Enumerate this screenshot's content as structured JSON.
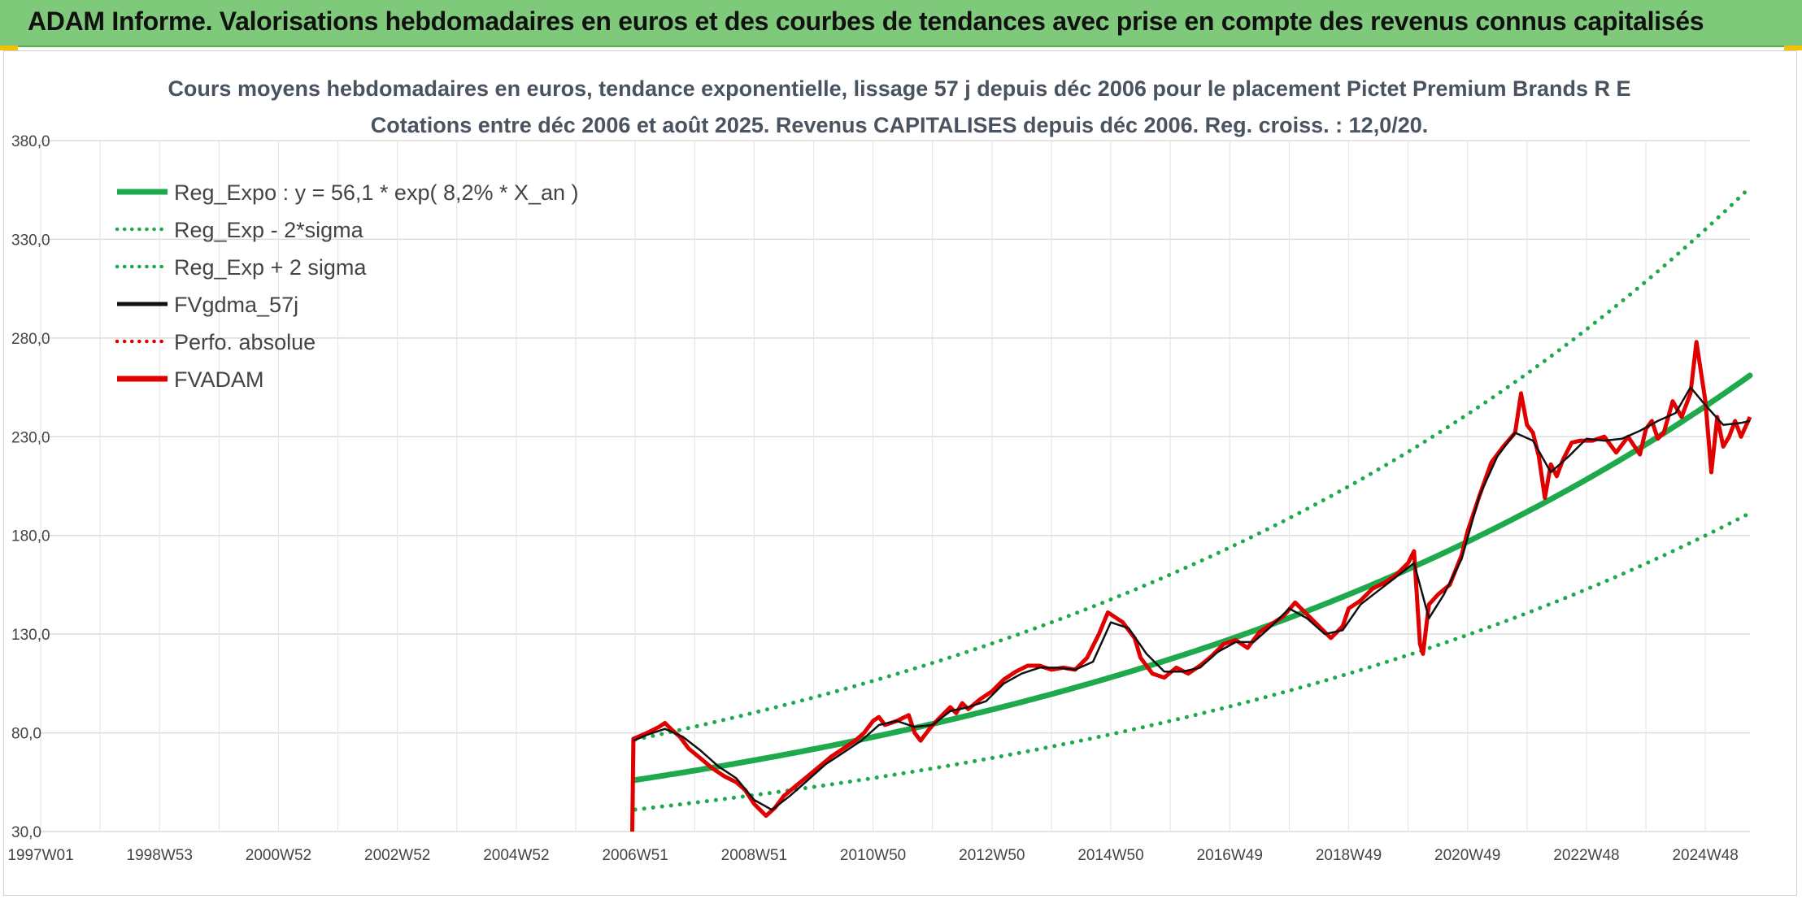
{
  "banner": {
    "title": "ADAM Informe. Valorisations hebdomadaires en euros et des courbes de tendances avec prise en compte des revenus connus capitalisés"
  },
  "chart_data": {
    "type": "line",
    "title_line1": "Cours moyens hebdomadaires en euros, tendance exponentielle, lissage 57 j depuis déc 2006 pour le placement Pictet Premium Brands R E",
    "title_line2": "Cotations entre déc 2006 et août 2025. Revenus CAPITALISES depuis déc 2006. Reg. croiss. : 12,0/20.",
    "ylim": [
      30,
      380
    ],
    "y_ticks": [
      "380,0",
      "330,0",
      "280,0",
      "230,0",
      "180,0",
      "130,0",
      "80,0",
      "30,0"
    ],
    "y_tick_values": [
      380,
      330,
      280,
      230,
      180,
      130,
      80,
      30
    ],
    "x_range": [
      1997.0,
      2025.75
    ],
    "x_ticks": [
      {
        "label": "1997W01",
        "t": 1997.0
      },
      {
        "label": "1998W53",
        "t": 1999.0
      },
      {
        "label": "2000W52",
        "t": 2001.0
      },
      {
        "label": "2002W52",
        "t": 2003.0
      },
      {
        "label": "2004W52",
        "t": 2005.0
      },
      {
        "label": "2006W51",
        "t": 2007.0
      },
      {
        "label": "2008W51",
        "t": 2009.0
      },
      {
        "label": "2010W50",
        "t": 2011.0
      },
      {
        "label": "2012W50",
        "t": 2013.0
      },
      {
        "label": "2014W50",
        "t": 2015.0
      },
      {
        "label": "2016W49",
        "t": 2017.0
      },
      {
        "label": "2018W49",
        "t": 2019.0
      },
      {
        "label": "2020W49",
        "t": 2021.0
      },
      {
        "label": "2022W48",
        "t": 2023.0
      },
      {
        "label": "2024W48",
        "t": 2025.0
      }
    ],
    "legend": [
      {
        "label": "Reg_Expo : y = 56,1 * exp( 8,2% *  X_an )",
        "color": "#1eaa4c",
        "style": "solid-thick"
      },
      {
        "label": "Reg_Exp - 2*sigma",
        "color": "#1eaa4c",
        "style": "dotted"
      },
      {
        "label": "Reg_Exp + 2 sigma",
        "color": "#1eaa4c",
        "style": "dotted"
      },
      {
        "label": "FVgdma_57j",
        "color": "#111111",
        "style": "solid"
      },
      {
        "label": "Perfo. absolue",
        "color": "#e00000",
        "style": "dotted"
      },
      {
        "label": "FVADAM",
        "color": "#e00000",
        "style": "solid-thick"
      }
    ],
    "regression": {
      "a": 56.1,
      "rate": 0.082,
      "t0": 2007.0,
      "upper_factor": 1.365,
      "lower_factor": 0.733,
      "t_end": 2025.75
    },
    "fvadam": {
      "x": [
        2006.95,
        2006.97,
        2007.05,
        2007.2,
        2007.4,
        2007.5,
        2007.6,
        2007.75,
        2007.9,
        2008.1,
        2008.3,
        2008.5,
        2008.7,
        2008.85,
        2009.0,
        2009.1,
        2009.2,
        2009.35,
        2009.5,
        2009.7,
        2009.9,
        2010.1,
        2010.3,
        2010.5,
        2010.7,
        2010.85,
        2011.0,
        2011.1,
        2011.2,
        2011.4,
        2011.6,
        2011.7,
        2011.8,
        2011.95,
        2012.1,
        2012.3,
        2012.4,
        2012.5,
        2012.6,
        2012.8,
        2013.0,
        2013.2,
        2013.4,
        2013.6,
        2013.8,
        2014.0,
        2014.2,
        2014.4,
        2014.6,
        2014.8,
        2014.95,
        2015.1,
        2015.2,
        2015.4,
        2015.5,
        2015.7,
        2015.9,
        2016.1,
        2016.3,
        2016.5,
        2016.7,
        2016.9,
        2017.1,
        2017.3,
        2017.5,
        2017.7,
        2017.9,
        2018.1,
        2018.3,
        2018.5,
        2018.7,
        2018.9,
        2019.0,
        2019.2,
        2019.4,
        2019.6,
        2019.8,
        2020.0,
        2020.1,
        2020.2,
        2020.25,
        2020.35,
        2020.5,
        2020.7,
        2020.9,
        2021.0,
        2021.2,
        2021.4,
        2021.6,
        2021.8,
        2021.9,
        2022.0,
        2022.1,
        2022.2,
        2022.3,
        2022.4,
        2022.5,
        2022.6,
        2022.75,
        2022.9,
        2023.1,
        2023.3,
        2023.5,
        2023.7,
        2023.9,
        2024.0,
        2024.1,
        2024.2,
        2024.3,
        2024.45,
        2024.6,
        2024.75,
        2024.85,
        2025.0,
        2025.1,
        2025.2,
        2025.3,
        2025.4,
        2025.5,
        2025.6,
        2025.75
      ],
      "y": [
        30,
        77,
        78,
        80,
        83,
        85,
        82,
        78,
        72,
        67,
        62,
        58,
        55,
        51,
        44,
        41,
        38,
        42,
        48,
        53,
        58,
        63,
        68,
        72,
        76,
        80,
        86,
        88,
        84,
        86,
        89,
        80,
        76,
        82,
        87,
        93,
        90,
        95,
        92,
        97,
        101,
        107,
        111,
        114,
        114,
        112,
        113,
        112,
        118,
        130,
        141,
        138,
        136,
        128,
        118,
        110,
        108,
        113,
        110,
        114,
        119,
        125,
        127,
        123,
        131,
        135,
        139,
        146,
        140,
        134,
        128,
        134,
        143,
        147,
        153,
        156,
        160,
        166,
        172,
        125,
        120,
        145,
        150,
        155,
        170,
        182,
        200,
        217,
        225,
        232,
        252,
        236,
        232,
        220,
        199,
        216,
        210,
        218,
        227,
        228,
        228,
        230,
        222,
        230,
        221,
        234,
        238,
        229,
        232,
        248,
        240,
        252,
        278,
        248,
        212,
        240,
        225,
        230,
        238,
        230,
        240
      ]
    },
    "fvgdma_57j": {
      "x": [
        2006.97,
        2007.2,
        2007.5,
        2007.8,
        2008.1,
        2008.4,
        2008.7,
        2009.0,
        2009.3,
        2009.6,
        2009.9,
        2010.2,
        2010.5,
        2010.8,
        2011.1,
        2011.4,
        2011.7,
        2012.0,
        2012.3,
        2012.6,
        2012.9,
        2013.2,
        2013.5,
        2013.8,
        2014.1,
        2014.4,
        2014.7,
        2015.0,
        2015.3,
        2015.6,
        2015.9,
        2016.2,
        2016.5,
        2016.8,
        2017.1,
        2017.4,
        2017.7,
        2018.0,
        2018.3,
        2018.6,
        2018.9,
        2019.2,
        2019.5,
        2019.8,
        2020.1,
        2020.35,
        2020.6,
        2020.9,
        2021.2,
        2021.5,
        2021.8,
        2022.1,
        2022.4,
        2022.7,
        2023.0,
        2023.3,
        2023.6,
        2023.9,
        2024.2,
        2024.5,
        2024.75,
        2025.0,
        2025.3,
        2025.6,
        2025.75
      ],
      "y": [
        76,
        79,
        82,
        78,
        71,
        63,
        57,
        46,
        41,
        48,
        56,
        64,
        70,
        76,
        84,
        86,
        83,
        84,
        91,
        93,
        96,
        105,
        110,
        113,
        113,
        112,
        116,
        136,
        133,
        120,
        111,
        111,
        113,
        121,
        126,
        126,
        134,
        143,
        138,
        130,
        132,
        145,
        152,
        159,
        166,
        138,
        150,
        168,
        200,
        220,
        232,
        228,
        212,
        220,
        229,
        228,
        229,
        233,
        238,
        242,
        255,
        246,
        236,
        237,
        238
      ]
    }
  }
}
